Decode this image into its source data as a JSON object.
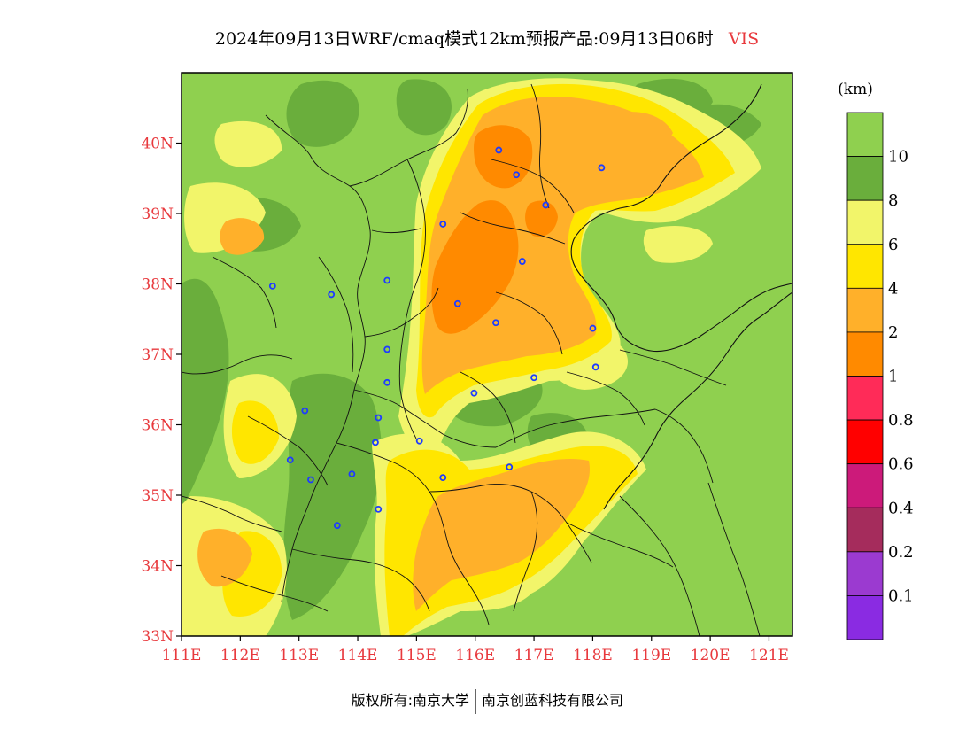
{
  "title": {
    "main": "2024年09月13日WRF/cmaq模式12km预报产品:09月13日06时",
    "variable": "VIS"
  },
  "map": {
    "lon_range": [
      111,
      121.4
    ],
    "lat_range": [
      33,
      41
    ],
    "lat_labels": [
      "33N",
      "34N",
      "35N",
      "36N",
      "37N",
      "38N",
      "39N",
      "40N"
    ],
    "lon_labels": [
      "111E",
      "112E",
      "113E",
      "114E",
      "115E",
      "116E",
      "117E",
      "118E",
      "119E",
      "120E",
      "121E"
    ],
    "colors": {
      "sea": "#8fd04f",
      "c_gt10": "#8fd04f",
      "c_8_10": "#6aae3c",
      "c_6_8": "#f2f56a",
      "c_4_6": "#ffe600",
      "c_2_4": "#ffb02a",
      "c_1_2": "#ff8a00"
    },
    "cities": [
      {
        "lon": 116.4,
        "lat": 39.9
      },
      {
        "lon": 116.7,
        "lat": 39.55
      },
      {
        "lon": 118.15,
        "lat": 39.65
      },
      {
        "lon": 117.2,
        "lat": 39.12
      },
      {
        "lon": 115.45,
        "lat": 38.85
      },
      {
        "lon": 116.8,
        "lat": 38.32
      },
      {
        "lon": 112.55,
        "lat": 37.97
      },
      {
        "lon": 113.55,
        "lat": 37.85
      },
      {
        "lon": 114.5,
        "lat": 38.05
      },
      {
        "lon": 115.7,
        "lat": 37.72
      },
      {
        "lon": 116.35,
        "lat": 37.45
      },
      {
        "lon": 118.0,
        "lat": 37.37
      },
      {
        "lon": 114.5,
        "lat": 37.07
      },
      {
        "lon": 118.05,
        "lat": 36.82
      },
      {
        "lon": 117.0,
        "lat": 36.67
      },
      {
        "lon": 114.5,
        "lat": 36.6
      },
      {
        "lon": 115.98,
        "lat": 36.45
      },
      {
        "lon": 113.1,
        "lat": 36.2
      },
      {
        "lon": 114.35,
        "lat": 36.1
      },
      {
        "lon": 115.05,
        "lat": 35.77
      },
      {
        "lon": 114.3,
        "lat": 35.75
      },
      {
        "lon": 112.85,
        "lat": 35.5
      },
      {
        "lon": 116.58,
        "lat": 35.4
      },
      {
        "lon": 113.9,
        "lat": 35.3
      },
      {
        "lon": 115.45,
        "lat": 35.25
      },
      {
        "lon": 113.2,
        "lat": 35.22
      },
      {
        "lon": 114.35,
        "lat": 34.8
      },
      {
        "lon": 113.65,
        "lat": 34.57
      }
    ]
  },
  "legend": {
    "unit": "(km)",
    "bins": [
      {
        "color": "#8fd04f"
      },
      {
        "color": "#6aae3c"
      },
      {
        "color": "#f2f56a"
      },
      {
        "color": "#ffe600"
      },
      {
        "color": "#ffb02a"
      },
      {
        "color": "#ff8a00"
      },
      {
        "color": "#ff2b58"
      },
      {
        "color": "#ff0000"
      },
      {
        "color": "#cc1a7a"
      },
      {
        "color": "#a52c5c"
      },
      {
        "color": "#9b3ad0"
      },
      {
        "color": "#8a2be2"
      }
    ],
    "labels": [
      "10",
      "8",
      "6",
      "4",
      "2",
      "1",
      "0.8",
      "0.6",
      "0.4",
      "0.2",
      "0.1"
    ]
  },
  "footer": {
    "left": "版权所有:南京大学",
    "right": "南京创蓝科技有限公司"
  }
}
